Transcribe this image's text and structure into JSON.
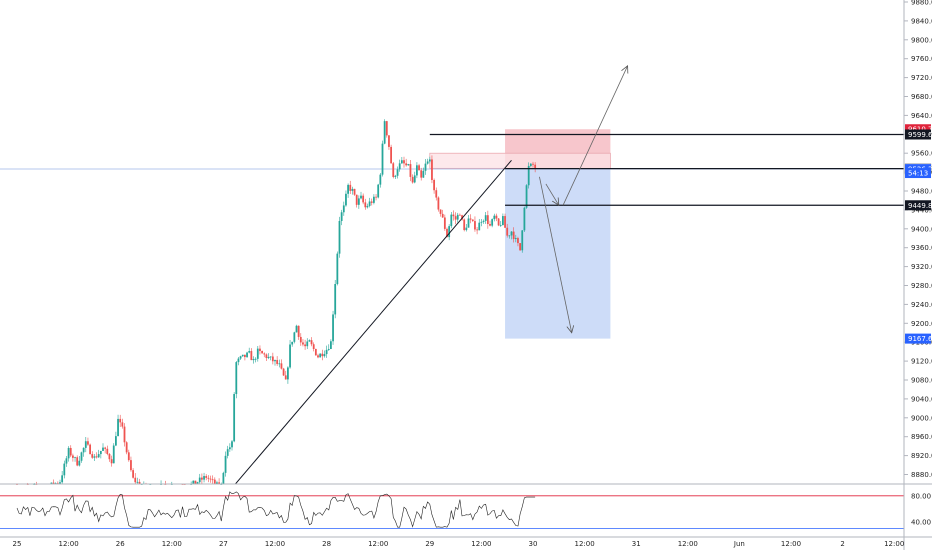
{
  "chart_data": {
    "type": "candlestick",
    "x_ticks": [
      {
        "label": "25",
        "t": 0
      },
      {
        "label": "12:00",
        "t": 12
      },
      {
        "label": "26",
        "t": 24
      },
      {
        "label": "12:00",
        "t": 36
      },
      {
        "label": "27",
        "t": 48
      },
      {
        "label": "12:00",
        "t": 60
      },
      {
        "label": "28",
        "t": 72
      },
      {
        "label": "12:00",
        "t": 84
      },
      {
        "label": "29",
        "t": 96
      },
      {
        "label": "12:00",
        "t": 108
      },
      {
        "label": "30",
        "t": 120
      },
      {
        "label": "12:00",
        "t": 132
      },
      {
        "label": "31",
        "t": 144
      },
      {
        "label": "12:00",
        "t": 156
      },
      {
        "label": "Jun",
        "t": 168
      },
      {
        "label": "12:00",
        "t": 180
      },
      {
        "label": "2",
        "t": 192
      },
      {
        "label": "12:00",
        "t": 204
      }
    ],
    "y_ticks": [
      "9880.0",
      "9840.0",
      "9800.0",
      "9760.0",
      "9720.0",
      "9680.0",
      "9640.0",
      "9600.0",
      "9560.0",
      "9520.0",
      "9480.0",
      "9440.0",
      "9400.0",
      "9360.0",
      "9320.0",
      "9280.0",
      "9240.0",
      "9200.0",
      "9160.0",
      "9120.0",
      "9080.0",
      "9040.0",
      "9000.0",
      "8960.0",
      "8920.0",
      "8880.0"
    ],
    "ylim": [
      8855,
      9890
    ],
    "price_path": [
      [
        0,
        8852
      ],
      [
        6,
        8848
      ],
      [
        10,
        8866
      ],
      [
        12,
        8930
      ],
      [
        14,
        8905
      ],
      [
        16,
        8945
      ],
      [
        18,
        8915
      ],
      [
        20,
        8935
      ],
      [
        22,
        8910
      ],
      [
        23.5,
        8995
      ],
      [
        24.5,
        8975
      ],
      [
        26,
        8905
      ],
      [
        27,
        8870
      ],
      [
        29,
        8855
      ],
      [
        32,
        8852
      ],
      [
        40,
        8855
      ],
      [
        44,
        8875
      ],
      [
        46,
        8860
      ],
      [
        47.5,
        8850
      ],
      [
        48.5,
        8925
      ],
      [
        50,
        8945
      ],
      [
        50.8,
        9115
      ],
      [
        52,
        9125
      ],
      [
        54,
        9135
      ],
      [
        55,
        9120
      ],
      [
        56,
        9140
      ],
      [
        58,
        9130
      ],
      [
        60,
        9118
      ],
      [
        61,
        9110
      ],
      [
        62.5,
        9075
      ],
      [
        63.5,
        9150
      ],
      [
        65,
        9195
      ],
      [
        66,
        9160
      ],
      [
        67,
        9150
      ],
      [
        68,
        9160
      ],
      [
        70,
        9130
      ],
      [
        72,
        9145
      ],
      [
        73,
        9160
      ],
      [
        74.5,
        9350
      ],
      [
        75,
        9420
      ],
      [
        76,
        9445
      ],
      [
        77,
        9490
      ],
      [
        78,
        9480
      ],
      [
        79,
        9455
      ],
      [
        80,
        9465
      ],
      [
        81,
        9445
      ],
      [
        82,
        9455
      ],
      [
        83.5,
        9465
      ],
      [
        84.5,
        9520
      ],
      [
        85.5,
        9630
      ],
      [
        86.5,
        9575
      ],
      [
        87.5,
        9505
      ],
      [
        88.5,
        9530
      ],
      [
        89.5,
        9540
      ],
      [
        91,
        9530
      ],
      [
        92,
        9495
      ],
      [
        93,
        9530
      ],
      [
        94,
        9505
      ],
      [
        95,
        9535
      ],
      [
        96,
        9545
      ],
      [
        97,
        9475
      ],
      [
        98,
        9445
      ],
      [
        99,
        9420
      ],
      [
        100,
        9385
      ],
      [
        101,
        9430
      ],
      [
        102,
        9420
      ],
      [
        103,
        9435
      ],
      [
        104,
        9395
      ],
      [
        105,
        9420
      ],
      [
        106,
        9410
      ],
      [
        107,
        9400
      ],
      [
        108,
        9420
      ],
      [
        109,
        9425
      ],
      [
        110,
        9405
      ],
      [
        111,
        9425
      ],
      [
        112,
        9405
      ],
      [
        113,
        9420
      ],
      [
        114,
        9385
      ],
      [
        115,
        9395
      ],
      [
        116,
        9375
      ],
      [
        117,
        9355
      ],
      [
        118,
        9450
      ],
      [
        119,
        9530
      ],
      [
        120,
        9535
      ],
      [
        120.8,
        9526.6
      ]
    ],
    "shapes": [
      {
        "kind": "trendline",
        "from": [
          50.8,
          8860
        ],
        "to": [
          115,
          9545
        ]
      },
      {
        "kind": "short-position",
        "t_start": 113.5,
        "t_end": 138,
        "entry": 9526.6,
        "stop": 9610.7,
        "target": 9167.6
      },
      {
        "kind": "supply-zone",
        "t_start": 96,
        "t_end": 138,
        "top": 9560,
        "bottom": 9528
      },
      {
        "kind": "horizontal-ray",
        "t_start": 96,
        "price": 9599.6
      },
      {
        "kind": "horizontal-ray",
        "t_start": 113.5,
        "price": 9527.4
      },
      {
        "kind": "horizontal-ray",
        "t_start": 113.5,
        "price": 9449.8
      },
      {
        "kind": "arrow",
        "from": [
          123,
          9495
        ],
        "to": [
          126,
          9450
        ]
      },
      {
        "kind": "arrow",
        "from": [
          127,
          9450
        ],
        "to": [
          142,
          9745
        ]
      },
      {
        "kind": "arrow",
        "from": [
          121.5,
          9510
        ],
        "to": [
          129,
          9180
        ]
      }
    ],
    "price_tags": [
      {
        "price": 9610.7,
        "label": "9610.7",
        "color": "#e0233b"
      },
      {
        "price": 9599.6,
        "label": "9599.6",
        "color": "#131722"
      },
      {
        "price": 9527.4,
        "label": "9527.4",
        "color": "#131722"
      },
      {
        "price": 9526.6,
        "label": "9526.6",
        "color": "#ffffff"
      },
      {
        "price": 9526.3,
        "label": "9526.3",
        "color": "#2962ff"
      },
      {
        "price": 9518,
        "label": "54:13",
        "color": "#2962ff"
      },
      {
        "price": 9449.8,
        "label": "9449.8",
        "color": "#131722"
      },
      {
        "price": 9167.6,
        "label": "9167.6",
        "color": "#2962ff"
      }
    ],
    "oscillator": {
      "y_ticks": [
        "80.00",
        "40.00"
      ],
      "ylim": [
        20,
        95
      ],
      "levels": [
        80,
        30
      ],
      "seed_end": 120.8
    }
  },
  "colors": {
    "up": "#26a69a",
    "down": "#ef5350",
    "target_fill": "#cddcf8",
    "stop_fill": "#f7c6cc",
    "zone_fill": "#fce2e5",
    "price_line": "#9db5e6",
    "axis": "#131722"
  }
}
